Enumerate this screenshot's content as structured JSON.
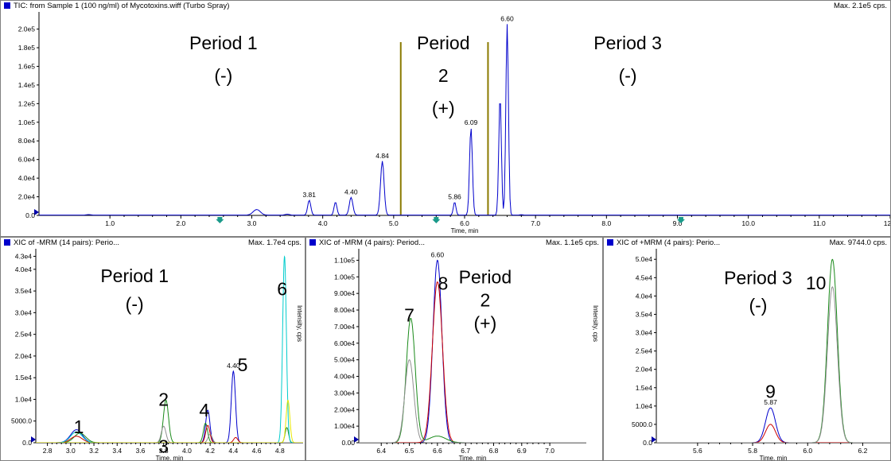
{
  "panels": [
    {
      "id": "tic",
      "title": "TIC: from Sample 1 (100 ng/ml) of Mycotoxins.wiff (Turbo Spray)",
      "max_label": "Max. 2.1e5 cps.",
      "xlabel": "Time, min",
      "ylabel": "",
      "chart_data": {
        "type": "line",
        "xlim": [
          0.0,
          12.0
        ],
        "ylim": [
          0,
          215000
        ],
        "x_ticks": [
          1.0,
          2.0,
          3.0,
          4.0,
          5.0,
          6.0,
          7.0,
          8.0,
          9.0,
          10.0,
          11.0,
          12.0
        ],
        "x_tick_labels": [
          "1.0",
          "2.0",
          "3.0",
          "4.0",
          "5.0",
          "6.0",
          "7.0",
          "8.0",
          "9.0",
          "10.0",
          "11.0",
          "12.0"
        ],
        "y_ticks": [
          0,
          20000,
          40000,
          60000,
          80000,
          100000,
          120000,
          140000,
          160000,
          180000,
          200000
        ],
        "y_tick_labels": [
          "0.0",
          "2.0e4",
          "4.0e4",
          "6.0e4",
          "8.0e4",
          "1.0e5",
          "1.2e5",
          "1.4e5",
          "1.6e5",
          "1.8e5",
          "2.0e5"
        ],
        "series": [
          {
            "color": "#0000cc",
            "baseline": 300,
            "peaks": [
              {
                "x": 0.7,
                "h": 600,
                "w": 0.03
              },
              {
                "x": 3.07,
                "h": 6000,
                "w": 0.05
              },
              {
                "x": 3.5,
                "h": 1000,
                "w": 0.03
              },
              {
                "x": 3.81,
                "h": 16000,
                "w": 0.022
              },
              {
                "x": 4.18,
                "h": 14000,
                "w": 0.02
              },
              {
                "x": 4.4,
                "h": 19000,
                "w": 0.025
              },
              {
                "x": 4.84,
                "h": 58000,
                "w": 0.025
              },
              {
                "x": 5.86,
                "h": 14000,
                "w": 0.018
              },
              {
                "x": 6.09,
                "h": 94000,
                "w": 0.02
              },
              {
                "x": 6.5,
                "h": 128000,
                "w": 0.018
              },
              {
                "x": 6.6,
                "h": 205000,
                "w": 0.018
              },
              {
                "x": 6.8,
                "h": 500,
                "w": 0.02
              }
            ]
          }
        ],
        "period_lines": [
          5.1,
          6.33
        ],
        "period_markers": [
          2.55,
          5.6,
          9.05
        ],
        "peak_labels": [
          {
            "x": 3.81,
            "y": 16000,
            "text": "3.81"
          },
          {
            "x": 4.4,
            "y": 19000,
            "text": "4.40"
          },
          {
            "x": 4.84,
            "y": 58000,
            "text": "4.84"
          },
          {
            "x": 5.86,
            "y": 14000,
            "text": "5.86"
          },
          {
            "x": 6.09,
            "y": 94000,
            "text": "6.09"
          },
          {
            "x": 6.6,
            "y": 205000,
            "text": "6.60"
          }
        ],
        "annotations": [
          {
            "x": 2.6,
            "y": 185000,
            "text": "Period 1"
          },
          {
            "x": 2.6,
            "y": 150000,
            "text": "(-)"
          },
          {
            "x": 5.7,
            "y": 185000,
            "text": "Period"
          },
          {
            "x": 5.7,
            "y": 150000,
            "text": "2"
          },
          {
            "x": 5.7,
            "y": 115000,
            "text": "(+)"
          },
          {
            "x": 8.3,
            "y": 185000,
            "text": "Period 3"
          },
          {
            "x": 8.3,
            "y": 150000,
            "text": "(-)"
          }
        ]
      }
    },
    {
      "id": "xic1",
      "title": "XIC of -MRM (14 pairs): Perio...",
      "max_label": "Max. 1.7e4 cps.",
      "xlabel": "Time, min",
      "ylabel": "Intensity, cps",
      "chart_data": {
        "type": "line",
        "xlim": [
          2.7,
          5.0
        ],
        "ylim": [
          0,
          44000
        ],
        "x_ticks": [
          2.8,
          3.0,
          3.2,
          3.4,
          3.6,
          3.8,
          4.0,
          4.2,
          4.4,
          4.6,
          4.8
        ],
        "x_tick_labels": [
          "2.8",
          "3.0",
          "3.2",
          "3.4",
          "3.6",
          "3.8",
          "4.0",
          "4.2",
          "4.4",
          "4.6",
          "4.8"
        ],
        "y_ticks": [
          0,
          5000,
          10000,
          15000,
          20000,
          25000,
          30000,
          35000,
          40000,
          43000
        ],
        "y_tick_labels": [
          "0.0",
          "5000.0",
          "1.0e4",
          "1.5e4",
          "2.0e4",
          "2.5e4",
          "3.0e4",
          "3.5e4",
          "4.0e4",
          "4.3e4"
        ],
        "series": [
          {
            "color": "#0000cc",
            "baseline": 0,
            "peaks": [
              {
                "x": 3.05,
                "h": 3000,
                "w": 0.05
              },
              {
                "x": 4.18,
                "h": 7500,
                "w": 0.018
              },
              {
                "x": 4.4,
                "h": 16500,
                "w": 0.018
              }
            ]
          },
          {
            "color": "#1a8a1a",
            "baseline": 0,
            "peaks": [
              {
                "x": 3.08,
                "h": 2200,
                "w": 0.05
              },
              {
                "x": 3.82,
                "h": 9800,
                "w": 0.022
              },
              {
                "x": 4.16,
                "h": 4500,
                "w": 0.018
              },
              {
                "x": 4.86,
                "h": 3500,
                "w": 0.015
              }
            ]
          },
          {
            "color": "#cc0000",
            "baseline": 0,
            "peaks": [
              {
                "x": 3.05,
                "h": 1500,
                "w": 0.05
              },
              {
                "x": 4.18,
                "h": 4000,
                "w": 0.018
              },
              {
                "x": 4.42,
                "h": 1200,
                "w": 0.018
              }
            ]
          },
          {
            "color": "#909090",
            "baseline": 0,
            "peaks": [
              {
                "x": 3.8,
                "h": 3800,
                "w": 0.02
              },
              {
                "x": 4.2,
                "h": 2000,
                "w": 0.018
              }
            ]
          },
          {
            "color": "#00cccc",
            "baseline": 0,
            "peaks": [
              {
                "x": 3.05,
                "h": 2500,
                "w": 0.05
              },
              {
                "x": 4.84,
                "h": 43000,
                "w": 0.016
              }
            ]
          },
          {
            "color": "#e8e800",
            "baseline": 0,
            "peaks": [
              {
                "x": 4.87,
                "h": 9800,
                "w": 0.016
              }
            ]
          }
        ],
        "period_markers": [],
        "peak_labels": [
          {
            "x": 4.4,
            "y": 16500,
            "text": "4.40"
          }
        ],
        "annotations": [
          {
            "x": 3.55,
            "y": 38500,
            "text": "Period 1"
          },
          {
            "x": 3.55,
            "y": 32000,
            "text": "(-)"
          },
          {
            "x": 4.82,
            "y": 35500,
            "text": "6"
          },
          {
            "x": 4.48,
            "y": 18000,
            "text": "5"
          },
          {
            "x": 4.15,
            "y": 7500,
            "text": "4"
          },
          {
            "x": 3.8,
            "y": 10000,
            "text": "2"
          },
          {
            "x": 3.8,
            "y": -800,
            "text": "3"
          },
          {
            "x": 3.07,
            "y": 3700,
            "text": "1"
          }
        ]
      }
    },
    {
      "id": "xic2",
      "title": "XIC of -MRM (4 pairs): Period...",
      "max_label": "Max. 1.1e5 cps.",
      "xlabel": "Time, min",
      "ylabel": "Intensity, cps",
      "chart_data": {
        "type": "line",
        "xlim": [
          6.32,
          7.13
        ],
        "ylim": [
          0,
          115000
        ],
        "x_ticks": [
          6.4,
          6.5,
          6.6,
          6.7,
          6.8,
          6.9,
          7.0
        ],
        "x_tick_labels": [
          "6.4",
          "6.5",
          "6.6",
          "6.7",
          "6.8",
          "6.9",
          "7.0"
        ],
        "y_ticks": [
          0,
          10000,
          20000,
          30000,
          40000,
          50000,
          60000,
          70000,
          80000,
          90000,
          100000,
          110000
        ],
        "y_tick_labels": [
          "0.00",
          "1.00e4",
          "2.00e4",
          "3.00e4",
          "4.00e4",
          "5.00e4",
          "6.00e4",
          "7.00e4",
          "8.00e4",
          "9.00e4",
          "1.00e5",
          "1.10e5"
        ],
        "series": [
          {
            "color": "#0000cc",
            "baseline": 0,
            "peaks": [
              {
                "x": 6.6,
                "h": 110000,
                "w": 0.016
              }
            ]
          },
          {
            "color": "#cc0000",
            "baseline": 0,
            "peaks": [
              {
                "x": 6.6,
                "h": 97000,
                "w": 0.018
              }
            ]
          },
          {
            "color": "#1a8a1a",
            "baseline": 0,
            "peaks": [
              {
                "x": 6.505,
                "h": 75000,
                "w": 0.016
              },
              {
                "x": 6.6,
                "h": 4000,
                "w": 0.03
              }
            ]
          },
          {
            "color": "#909090",
            "baseline": 0,
            "peaks": [
              {
                "x": 6.5,
                "h": 50000,
                "w": 0.016
              }
            ]
          }
        ],
        "period_markers": [],
        "peak_labels": [
          {
            "x": 6.6,
            "y": 110000,
            "text": "6.60"
          }
        ],
        "annotations": [
          {
            "x": 6.77,
            "y": 100000,
            "text": "Period"
          },
          {
            "x": 6.77,
            "y": 86000,
            "text": "2"
          },
          {
            "x": 6.77,
            "y": 72000,
            "text": "(+)"
          },
          {
            "x": 6.5,
            "y": 77000,
            "text": "7"
          },
          {
            "x": 6.62,
            "y": 96000,
            "text": "8"
          }
        ]
      }
    },
    {
      "id": "xic3",
      "title": "XIC of +MRM (4 pairs): Perio...",
      "max_label": "Max. 9744.0 cps.",
      "xlabel": "Time, min",
      "ylabel": "",
      "chart_data": {
        "type": "line",
        "xlim": [
          5.45,
          6.3
        ],
        "ylim": [
          0,
          52000
        ],
        "x_ticks": [
          5.6,
          5.8,
          6.0,
          6.2
        ],
        "x_tick_labels": [
          "5.6",
          "5.8",
          "6.0",
          "6.2"
        ],
        "y_ticks": [
          0,
          5000,
          10000,
          15000,
          20000,
          25000,
          30000,
          35000,
          40000,
          45000,
          50000
        ],
        "y_tick_labels": [
          "0.0",
          "5000.0",
          "1.0e4",
          "1.5e4",
          "2.0e4",
          "2.5e4",
          "3.0e4",
          "3.5e4",
          "4.0e4",
          "4.5e4",
          "5.0e4"
        ],
        "series": [
          {
            "color": "#0000cc",
            "baseline": 0,
            "peaks": [
              {
                "x": 5.865,
                "h": 9500,
                "w": 0.018
              }
            ]
          },
          {
            "color": "#cc0000",
            "baseline": 0,
            "peaks": [
              {
                "x": 5.865,
                "h": 5000,
                "w": 0.018
              }
            ]
          },
          {
            "color": "#1a8a1a",
            "baseline": 0,
            "peaks": [
              {
                "x": 6.09,
                "h": 50000,
                "w": 0.018
              }
            ]
          },
          {
            "color": "#909090",
            "baseline": 0,
            "peaks": [
              {
                "x": 6.09,
                "h": 42500,
                "w": 0.018
              }
            ]
          }
        ],
        "period_markers": [],
        "peak_labels": [
          {
            "x": 5.865,
            "y": 9500,
            "text": "5.87"
          }
        ],
        "annotations": [
          {
            "x": 5.82,
            "y": 45000,
            "text": "Period 3"
          },
          {
            "x": 5.82,
            "y": 37500,
            "text": "(-)"
          },
          {
            "x": 6.03,
            "y": 43500,
            "text": "10"
          },
          {
            "x": 5.865,
            "y": 14000,
            "text": "9"
          }
        ]
      }
    }
  ]
}
